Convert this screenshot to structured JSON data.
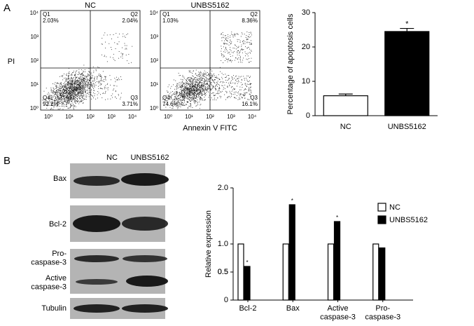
{
  "panels": [
    "A",
    "B"
  ],
  "flow": {
    "ylabel": "PI",
    "xlabel": "Annexin V FITC",
    "ticks": [
      "10⁰",
      "10¹",
      "10²",
      "10³",
      "10⁴"
    ],
    "plots": [
      {
        "title": "NC",
        "quadrants": [
          [
            "Q1",
            "2.03%"
          ],
          [
            "Q2",
            "2.04%"
          ],
          [
            "Q3",
            "3.71%"
          ],
          [
            "Q4",
            "92.2%"
          ]
        ]
      },
      {
        "title": "UNBS5162",
        "quadrants": [
          [
            "Q1",
            "1.03%"
          ],
          [
            "Q2",
            "8.36%"
          ],
          [
            "Q3",
            "16.1%"
          ],
          [
            "Q4",
            "74.6%"
          ]
        ]
      }
    ]
  },
  "blot": {
    "columns": [
      "NC",
      "UNBS5162"
    ],
    "rows": [
      "Bax",
      "Bcl-2",
      "Pro-\ncaspase-3",
      "Active\ncaspase-3",
      "Tubulin"
    ]
  },
  "chart_data": [
    {
      "type": "bar",
      "ylabel": "Percentage of apoptosis cells",
      "categories": [
        "NC",
        "UNBS5162"
      ],
      "values": [
        5.8,
        24.5
      ],
      "errors": [
        0.5,
        0.9
      ],
      "colors": [
        "#ffffff",
        "#000000"
      ],
      "annotations": [
        null,
        "*"
      ],
      "ylim": [
        0,
        30
      ],
      "yticks": [
        0,
        10,
        20,
        30
      ]
    },
    {
      "type": "grouped-bar",
      "ylabel": "Relative expression",
      "categories": [
        "Bcl-2",
        "Bax",
        "Active\ncaspase-3",
        "Pro-\ncaspase-3"
      ],
      "series": [
        {
          "name": "NC",
          "color": "#ffffff",
          "values": [
            1,
            1,
            1,
            1
          ]
        },
        {
          "name": "UNBS5162",
          "color": "#000000",
          "values": [
            0.6,
            1.7,
            1.4,
            0.93
          ]
        }
      ],
      "annotations": [
        "*",
        "*",
        "*",
        null
      ],
      "ylim": [
        0,
        2.0
      ],
      "yticks": [
        0,
        0.5,
        {
          "value": 1,
          "label": "1.0"
        },
        0.5,
        {
          "value": 2,
          "label": "2.0"
        }
      ],
      "legend": "upper right"
    }
  ]
}
